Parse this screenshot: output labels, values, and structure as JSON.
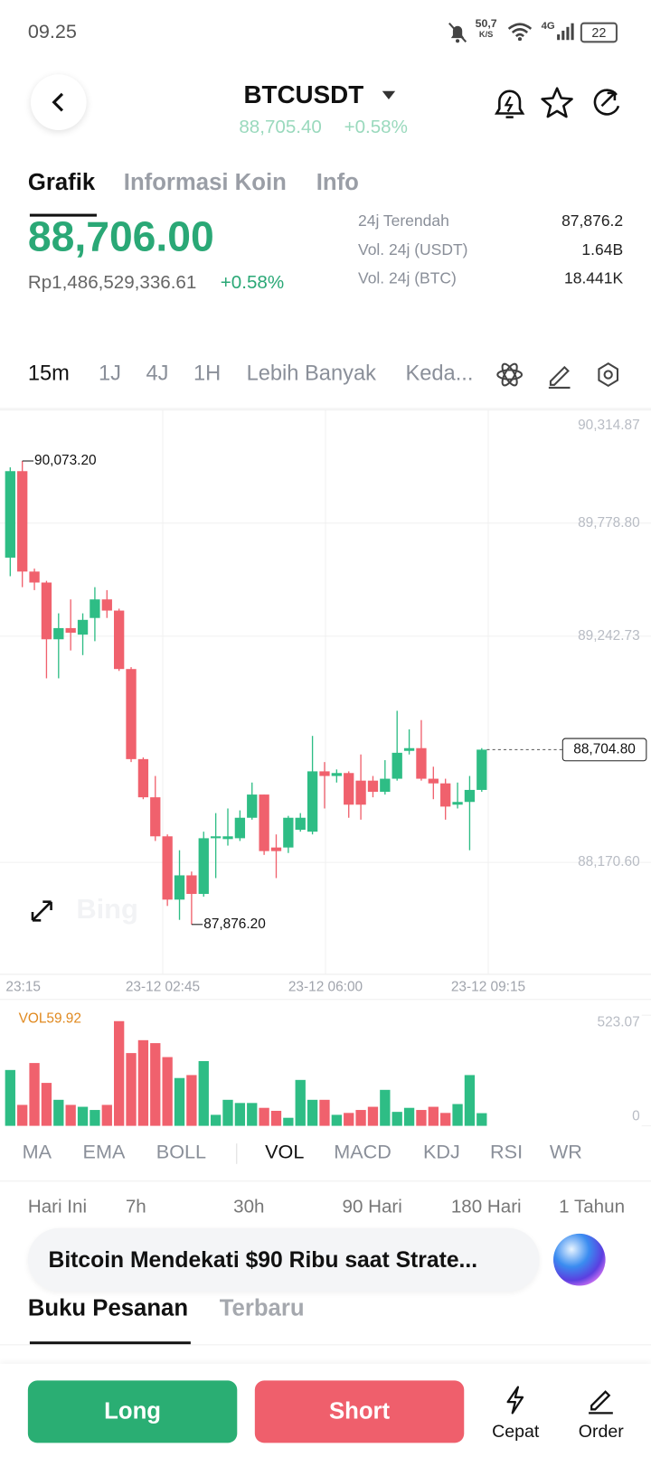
{
  "status_bar": {
    "time": "09.25",
    "speed": "50,7",
    "speed_unit": "K/S",
    "network": "4G",
    "battery": "22"
  },
  "header": {
    "symbol": "BTCUSDT",
    "price": "88,705.40",
    "change": "+0.58%"
  },
  "tabs": [
    "Grafik",
    "Informasi Koin",
    "Info"
  ],
  "price": {
    "last": "88,706.00",
    "fiat": "Rp1,486,529,336.61",
    "change": "+0.58%"
  },
  "stats": [
    {
      "label": "24j Terendah",
      "value": "87,876.2"
    },
    {
      "label": "Vol. 24j (USDT)",
      "value": "1.64B"
    },
    {
      "label": "Vol. 24j (BTC)",
      "value": "18.441K"
    }
  ],
  "timeframes": [
    "15m",
    "1J",
    "4J",
    "1H",
    "Lebih Banyak",
    "Keda..."
  ],
  "chart_data": {
    "type": "candlestick",
    "open": [
      89615,
      90025,
      89549,
      89497,
      89228,
      89281,
      89250,
      89329,
      89417,
      89364,
      89087,
      88660,
      88479,
      88294,
      87994,
      88109,
      88021,
      88285,
      88281,
      88285,
      88382,
      88492,
      88241,
      88241,
      88325,
      88316,
      88602,
      88580,
      88594,
      88558,
      88558,
      88505,
      88567,
      88699,
      88712,
      88567,
      88545,
      88444,
      88457,
      88514
    ],
    "high": [
      90043,
      90073.2,
      89563,
      89505,
      89351,
      89417,
      89351,
      89475,
      89461,
      89373,
      89096,
      88668,
      88580,
      88303,
      88228,
      88127,
      88316,
      88404,
      88426,
      88417,
      88549,
      88492,
      88303,
      88391,
      88404,
      88770,
      88646,
      88611,
      88602,
      88682,
      88580,
      88655,
      88889,
      88801,
      88845,
      88624,
      88567,
      88549,
      88580,
      88712
    ],
    "low": [
      89527,
      89475,
      89461,
      89043,
      89043,
      89175,
      89153,
      89219,
      89329,
      89078,
      88646,
      88470,
      88272,
      87964,
      87898,
      87876.2,
      88008,
      88096,
      88250,
      88272,
      88373,
      88206,
      88096,
      88215,
      88316,
      88303,
      88426,
      88549,
      88382,
      88373,
      88479,
      88492,
      88558,
      88682,
      88558,
      88470,
      88373,
      88426,
      88228,
      88505
    ],
    "close": [
      90025,
      89549,
      89497,
      89228,
      89281,
      89259,
      89320,
      89417,
      89364,
      89087,
      88660,
      88479,
      88294,
      87994,
      88109,
      88021,
      88285,
      88294,
      88294,
      88382,
      88492,
      88224,
      88224,
      88382,
      88382,
      88602,
      88580,
      88594,
      88444,
      88444,
      88505,
      88567,
      88690,
      88712,
      88567,
      88545,
      88435,
      88457,
      88514,
      88704.8
    ],
    "up_color": "#2ebd85",
    "down_color": "#f0616d",
    "ylim": [
      87640,
      90314.87
    ],
    "yticks": [
      {
        "value": 88170.6,
        "label": "88,170.60"
      },
      {
        "value": 89242.73,
        "label": "89,242.73"
      },
      {
        "value": 89778.8,
        "label": "89,778.80"
      },
      {
        "value": 90314.87,
        "label": "90,314.87"
      }
    ],
    "grid": true,
    "xtick_labels": [
      "23:15",
      "23-12 02:45",
      "23-12 06:00",
      "23-12 09:15"
    ],
    "max_label": {
      "value": 90073.2,
      "label": "90,073.20"
    },
    "min_label": {
      "value": 87876.2,
      "label": "87,876.20"
    },
    "last_label": {
      "value": 88704.8,
      "label": "88,704.80"
    },
    "volume": {
      "label": "VOL59.92",
      "label_color": "#e0891f",
      "values": [
        264,
        99,
        297,
        203,
        123,
        99,
        90,
        75,
        99,
        495,
        344,
        405,
        391,
        325,
        226,
        240,
        306,
        52,
        123,
        108,
        108,
        85,
        71,
        38,
        217,
        123,
        123,
        52,
        61,
        75,
        90,
        170,
        66,
        85,
        75,
        90,
        61,
        103,
        240,
        59.92
      ],
      "ylim": [
        0,
        523.07
      ],
      "yticks": [
        0,
        523.07
      ]
    }
  },
  "indicators": [
    "MA",
    "EMA",
    "BOLL",
    "VOL",
    "MACD",
    "KDJ",
    "RSI",
    "WR"
  ],
  "periods": [
    "Hari Ini",
    "7h",
    "30h",
    "90 Hari",
    "180 Hari",
    "1 Tahun"
  ],
  "news": "Bitcoin Mendekati $90 Ribu saat Strate...",
  "order_tabs": [
    "Buku Pesanan",
    "Terbaru"
  ],
  "actions": {
    "long": "Long",
    "short": "Short",
    "quick": "Cepat",
    "order": "Order"
  }
}
